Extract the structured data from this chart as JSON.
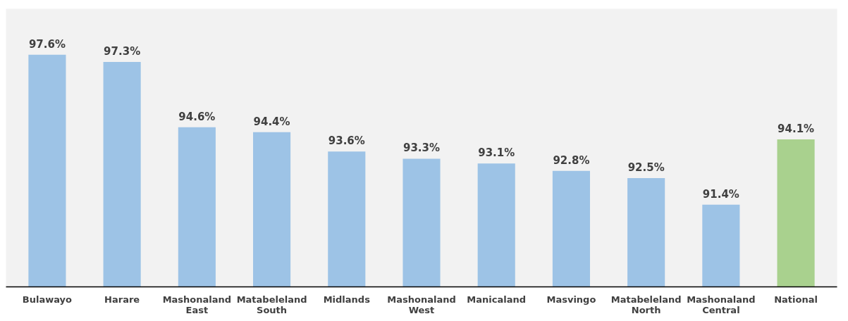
{
  "chart_data": {
    "type": "bar",
    "categories": [
      "Bulawayo",
      "Harare",
      "Mashonaland East",
      "Matabeleland South",
      "Midlands",
      "Mashonaland West",
      "Manicaland",
      "Masvingo",
      "Matabeleland North",
      "Mashonaland Central",
      "National"
    ],
    "values": [
      97.6,
      97.3,
      94.6,
      94.4,
      93.6,
      93.3,
      93.1,
      92.8,
      92.5,
      91.4,
      94.1
    ],
    "colors": [
      "#9dc3e6",
      "#9dc3e6",
      "#9dc3e6",
      "#9dc3e6",
      "#9dc3e6",
      "#9dc3e6",
      "#9dc3e6",
      "#9dc3e6",
      "#9dc3e6",
      "#9dc3e6",
      "#a9d18e"
    ],
    "value_labels": [
      "97.6%",
      "97.3%",
      "94.6%",
      "94.4%",
      "93.6%",
      "93.3%",
      "93.1%",
      "92.8%",
      "92.5%",
      "91.4%",
      "94.1%"
    ],
    "ylim": [
      88,
      99.5
    ],
    "tick_labels": "x",
    "grid": false
  }
}
